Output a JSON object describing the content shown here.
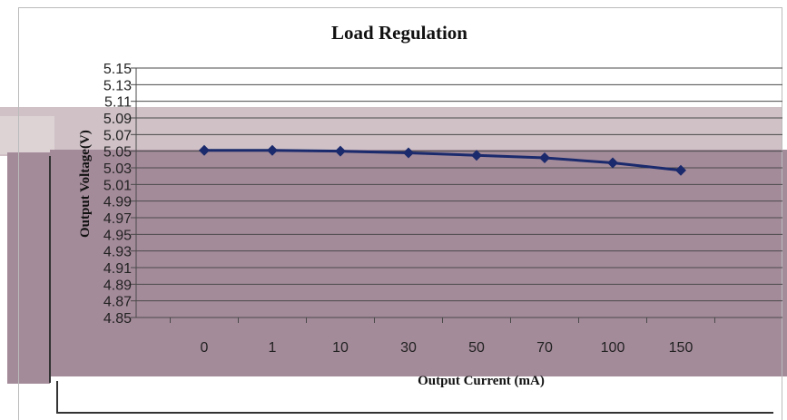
{
  "chart_data": {
    "type": "line",
    "title": "Load Regulation",
    "xlabel": "Output Current (mA)",
    "ylabel": "Output Voltage(V)",
    "categories": [
      "0",
      "1",
      "10",
      "30",
      "50",
      "70",
      "100",
      "150"
    ],
    "series": [
      {
        "values": [
          5.051,
          5.051,
          5.05,
          5.048,
          5.045,
          5.042,
          5.036,
          5.027
        ],
        "color": "#1a2a6c"
      }
    ],
    "yticks": [
      "5.15",
      "5.13",
      "5.11",
      "5.09",
      "5.07",
      "5.05",
      "5.03",
      "5.01",
      "4.99",
      "4.97",
      "4.95",
      "4.93",
      "4.91",
      "4.89",
      "4.87",
      "4.85"
    ],
    "ylim": [
      4.85,
      5.15
    ],
    "grid": true,
    "legend": "none"
  }
}
